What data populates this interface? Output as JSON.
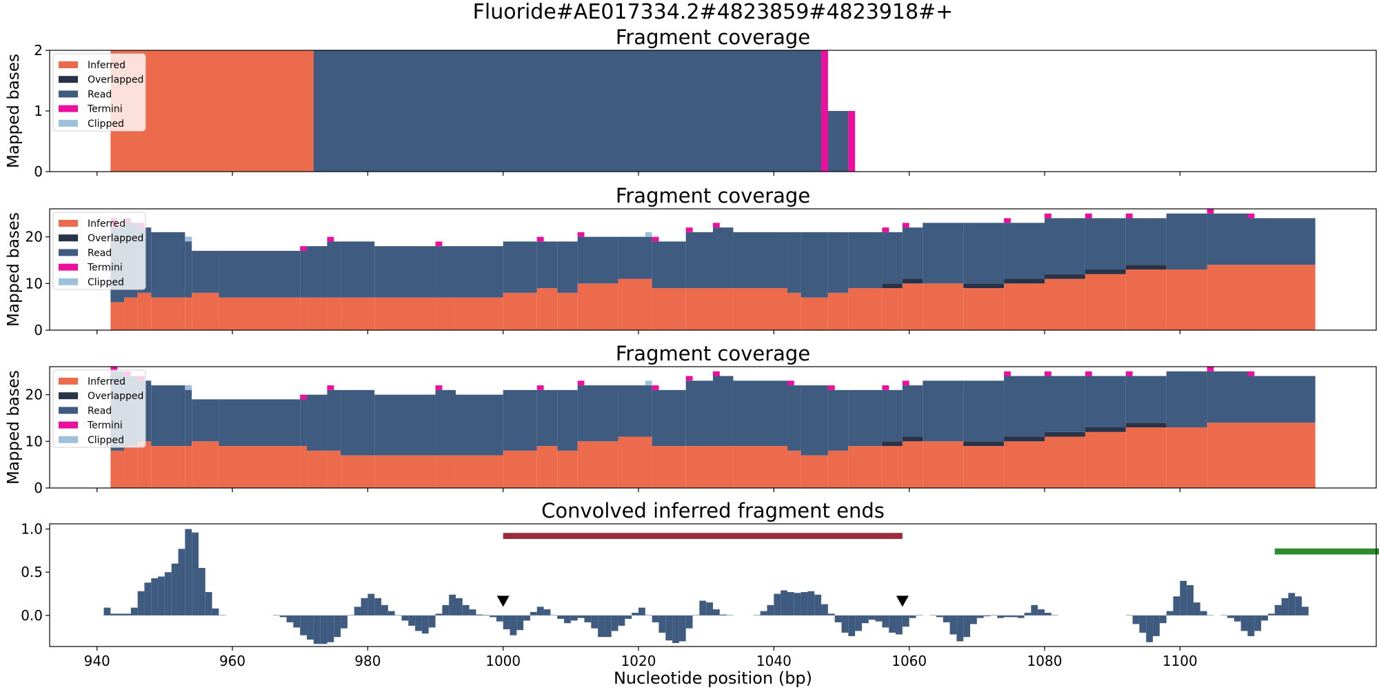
{
  "figure": {
    "title": "Fluoride#AE017334.2#4823859#4823918#+"
  },
  "colors": {
    "inferred": "#ED6B4D",
    "overlapped": "#283347",
    "read": "#3F5B80",
    "termini": "#EC0E9C",
    "clipped": "#9CC2DB",
    "signal": "#3F5B80",
    "bar_red": "#9B2D3A",
    "bar_green": "#2E8B2E",
    "marker": "#000000"
  },
  "legend": [
    "Inferred",
    "Overlapped",
    "Read",
    "Termini",
    "Clipped"
  ],
  "chart_data": [
    {
      "type": "area",
      "title": "Fragment coverage",
      "ylabel": "Mapped bases",
      "xlim": [
        933,
        1129
      ],
      "ylim": [
        0,
        2
      ],
      "yticks": [
        0,
        1,
        2
      ],
      "legend_position": "upper-left",
      "series": [
        {
          "name": "Inferred",
          "segments": [
            [
              942,
              976,
              2
            ],
            [
              972,
              976,
              1
            ]
          ]
        },
        {
          "name": "Read",
          "segments": [
            [
              972,
              1047,
              2
            ],
            [
              976,
              1051,
              1
            ]
          ]
        },
        {
          "name": "Termini",
          "segments": [
            [
              1047,
              1048,
              2
            ],
            [
              1051,
              1052,
              1
            ]
          ]
        }
      ]
    },
    {
      "type": "area",
      "title": "Fragment coverage",
      "ylabel": "Mapped bases",
      "xlim": [
        933,
        1129
      ],
      "ylim": [
        0,
        26
      ],
      "yticks": [
        0,
        10,
        20
      ],
      "legend_position": "upper-left",
      "x_start": 942,
      "x_end": 1120,
      "steps": [
        [
          942,
          6,
          6,
          0,
          22,
          2
        ],
        [
          944,
          7,
          7,
          0,
          23,
          1
        ],
        [
          946,
          8,
          8,
          0,
          22,
          1
        ],
        [
          948,
          7,
          7,
          0,
          21,
          0
        ],
        [
          953,
          7,
          7,
          0,
          19,
          1
        ],
        [
          954,
          8,
          8,
          0,
          17,
          0
        ],
        [
          958,
          7,
          7,
          0,
          17,
          0
        ],
        [
          970,
          7,
          7,
          0,
          17,
          1
        ],
        [
          971,
          7,
          7,
          0,
          18,
          0
        ],
        [
          974,
          7,
          7,
          0,
          19,
          1
        ],
        [
          976,
          7,
          7,
          0,
          19,
          0
        ],
        [
          981,
          7,
          7,
          0,
          18,
          0
        ],
        [
          990,
          7,
          7,
          0,
          18,
          1
        ],
        [
          993,
          7,
          7,
          0,
          18,
          0
        ],
        [
          1000,
          8,
          8,
          0,
          19,
          0
        ],
        [
          1005,
          9,
          9,
          0,
          19,
          1
        ],
        [
          1008,
          8,
          8,
          0,
          19,
          0
        ],
        [
          1011,
          10,
          10,
          0,
          20,
          1
        ],
        [
          1017,
          11,
          11,
          0,
          20,
          0
        ],
        [
          1022,
          9,
          9,
          0,
          19,
          1
        ],
        [
          1027,
          9,
          9,
          0,
          21,
          1
        ],
        [
          1031,
          9,
          9,
          0,
          22,
          1
        ],
        [
          1034,
          9,
          9,
          0,
          21,
          0
        ],
        [
          1042,
          8,
          8,
          0,
          21,
          0
        ],
        [
          1044,
          7,
          7,
          0,
          21,
          0
        ],
        [
          1048,
          8,
          8,
          0,
          21,
          0
        ],
        [
          1051,
          9,
          9,
          0,
          21,
          0
        ],
        [
          1056,
          9,
          10,
          0,
          21,
          1
        ],
        [
          1059,
          10,
          11,
          0,
          22,
          1
        ],
        [
          1062,
          10,
          10,
          0,
          23,
          0
        ],
        [
          1068,
          9,
          10,
          0,
          23,
          0
        ],
        [
          1074,
          10,
          11,
          0,
          23,
          1
        ],
        [
          1080,
          11,
          12,
          0,
          24,
          1
        ],
        [
          1086,
          12,
          13,
          0,
          24,
          1
        ],
        [
          1092,
          13,
          14,
          0,
          24,
          1
        ],
        [
          1098,
          13,
          13,
          0,
          25,
          0
        ],
        [
          1104,
          14,
          14,
          0,
          25,
          1
        ],
        [
          1110,
          14,
          14,
          0,
          24,
          1
        ]
      ],
      "clipped_marks": [
        [
          953,
          19,
          1
        ],
        [
          1021,
          20,
          1
        ]
      ]
    },
    {
      "type": "area",
      "title": "Fragment coverage",
      "ylabel": "Mapped bases",
      "xlim": [
        933,
        1129
      ],
      "ylim": [
        0,
        26
      ],
      "yticks": [
        0,
        10,
        20
      ],
      "legend_position": "upper-left",
      "x_start": 942,
      "x_end": 1120,
      "steps": [
        [
          942,
          8,
          8,
          0,
          25,
          1
        ],
        [
          944,
          9,
          9,
          0,
          24,
          1
        ],
        [
          946,
          10,
          10,
          0,
          23,
          1
        ],
        [
          948,
          9,
          9,
          0,
          22,
          0
        ],
        [
          953,
          9,
          9,
          0,
          21,
          1
        ],
        [
          954,
          10,
          10,
          0,
          19,
          0
        ],
        [
          958,
          9,
          9,
          0,
          19,
          0
        ],
        [
          970,
          9,
          9,
          0,
          19,
          1
        ],
        [
          971,
          8,
          8,
          0,
          20,
          0
        ],
        [
          974,
          8,
          8,
          0,
          21,
          1
        ],
        [
          976,
          7,
          7,
          0,
          21,
          0
        ],
        [
          981,
          7,
          7,
          0,
          20,
          0
        ],
        [
          990,
          7,
          7,
          0,
          21,
          1
        ],
        [
          993,
          7,
          7,
          0,
          20,
          0
        ],
        [
          1000,
          8,
          8,
          0,
          21,
          0
        ],
        [
          1005,
          9,
          9,
          0,
          21,
          1
        ],
        [
          1008,
          8,
          8,
          0,
          21,
          0
        ],
        [
          1011,
          10,
          10,
          0,
          22,
          1
        ],
        [
          1017,
          11,
          11,
          0,
          22,
          0
        ],
        [
          1022,
          9,
          9,
          0,
          21,
          1
        ],
        [
          1027,
          9,
          9,
          0,
          23,
          1
        ],
        [
          1031,
          9,
          9,
          0,
          24,
          1
        ],
        [
          1034,
          9,
          9,
          0,
          23,
          0
        ],
        [
          1042,
          8,
          8,
          0,
          22,
          1
        ],
        [
          1044,
          7,
          7,
          0,
          22,
          0
        ],
        [
          1048,
          8,
          8,
          0,
          21,
          1
        ],
        [
          1051,
          9,
          9,
          0,
          21,
          0
        ],
        [
          1056,
          9,
          10,
          0,
          21,
          1
        ],
        [
          1059,
          10,
          11,
          0,
          22,
          1
        ],
        [
          1062,
          10,
          10,
          0,
          23,
          0
        ],
        [
          1068,
          9,
          10,
          0,
          23,
          0
        ],
        [
          1074,
          10,
          11,
          0,
          24,
          1
        ],
        [
          1080,
          11,
          12,
          0,
          24,
          1
        ],
        [
          1086,
          12,
          13,
          0,
          24,
          1
        ],
        [
          1092,
          13,
          14,
          0,
          24,
          1
        ],
        [
          1098,
          13,
          13,
          0,
          25,
          0
        ],
        [
          1104,
          14,
          14,
          0,
          25,
          1
        ],
        [
          1110,
          14,
          14,
          0,
          24,
          1
        ]
      ],
      "clipped_marks": [
        [
          953,
          21,
          1
        ],
        [
          1021,
          22,
          1
        ]
      ]
    },
    {
      "type": "bar",
      "title": "Convolved inferred fragment ends",
      "xlabel": "Nucleotide position (bp)",
      "xlim": [
        933,
        1129
      ],
      "ylim": [
        -0.36,
        1.06
      ],
      "xticks": [
        940,
        960,
        980,
        1000,
        1020,
        1040,
        1060,
        1080,
        1100
      ],
      "yticks": [
        0.0,
        0.5,
        1.0
      ],
      "ytick_labels": [
        "0.0",
        "0.5",
        "1.0"
      ],
      "segments": [
        {
          "x0": 941,
          "values": [
            0.09,
            0.02,
            0.02,
            0.02,
            0.09,
            0.28,
            0.38,
            0.43,
            0.45,
            0.5,
            0.6,
            0.77,
            1.0,
            0.96,
            0.55,
            0.27,
            0.08,
            0.0
          ]
        },
        {
          "x0": 966,
          "values": [
            0.0,
            -0.02,
            -0.08,
            -0.14,
            -0.23,
            -0.28,
            -0.33,
            -0.33,
            -0.31,
            -0.25,
            -0.15,
            0.0,
            0.1,
            0.2,
            0.25,
            0.2,
            0.12,
            0.05,
            0.0,
            -0.06,
            -0.12,
            -0.18,
            -0.21,
            -0.14,
            0.02,
            0.12,
            0.24,
            0.2,
            0.12,
            0.07,
            0.01,
            0.0
          ]
        },
        {
          "x0": 997,
          "values": [
            0.0,
            -0.02,
            -0.07,
            -0.16,
            -0.23,
            -0.17,
            -0.06,
            0.04,
            0.1,
            0.07,
            0.0,
            -0.04,
            -0.09,
            -0.06,
            -0.03,
            -0.08,
            -0.15,
            -0.25,
            -0.25,
            -0.18,
            -0.12,
            -0.04,
            0.03,
            0.09,
            0.0,
            -0.08,
            -0.2,
            -0.29,
            -0.32,
            -0.3,
            -0.15,
            0.0,
            0.17,
            0.15,
            0.07,
            0.01,
            0.0
          ]
        },
        {
          "x0": 1037,
          "values": [
            0.0,
            0.05,
            0.12,
            0.25,
            0.29,
            0.27,
            0.26,
            0.27,
            0.28,
            0.24,
            0.13,
            0.02,
            -0.08,
            -0.2,
            -0.24,
            -0.18,
            -0.09,
            -0.05,
            -0.07,
            -0.14,
            -0.2,
            -0.22,
            -0.13,
            -0.03,
            0.0
          ]
        },
        {
          "x0": 1063,
          "values": [
            0.0,
            -0.02,
            -0.08,
            -0.22,
            -0.3,
            -0.25,
            -0.1,
            -0.03,
            -0.01,
            0.0,
            -0.03,
            -0.02,
            -0.02,
            -0.03,
            0.03,
            0.12,
            0.07,
            0.03,
            0.0
          ]
        },
        {
          "x0": 1092,
          "values": [
            0.0,
            -0.1,
            -0.2,
            -0.31,
            -0.24,
            -0.09,
            0.05,
            0.22,
            0.4,
            0.35,
            0.15,
            0.05,
            0.0
          ]
        },
        {
          "x0": 1106,
          "values": [
            0.0,
            -0.03,
            -0.07,
            -0.18,
            -0.24,
            -0.18,
            -0.06,
            0.02,
            0.12,
            0.2,
            0.26,
            0.22,
            0.1
          ]
        }
      ],
      "markers": [
        1000,
        1059
      ],
      "marker_y": 0.1,
      "bars": [
        {
          "x0": 1000,
          "x1": 1059,
          "y": 0.92,
          "color": "bar_red"
        },
        {
          "x0": 1114,
          "x1": 1130,
          "y": 0.74,
          "color": "bar_green"
        }
      ]
    }
  ]
}
